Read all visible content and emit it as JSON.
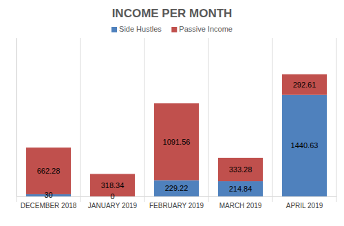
{
  "chart_data": {
    "type": "bar",
    "title": "INCOME PER MONTH",
    "categories": [
      "DECEMBER 2018",
      "JANUARY 2019",
      "FEBRUARY 2019",
      "MARCH 2019",
      "APRIL 2019"
    ],
    "series": [
      {
        "name": "Side Hustles",
        "color": "#4f81bd",
        "values": [
          30,
          0,
          229.22,
          214.84,
          1440.63
        ]
      },
      {
        "name": "Passive Income",
        "color": "#c0504d",
        "values": [
          662.28,
          318.34,
          1091.56,
          333.28,
          292.61
        ]
      }
    ],
    "ylim": [
      0,
      2250
    ],
    "stacked": true,
    "data_labels": true,
    "legend": "top",
    "tick_labels": "x"
  }
}
